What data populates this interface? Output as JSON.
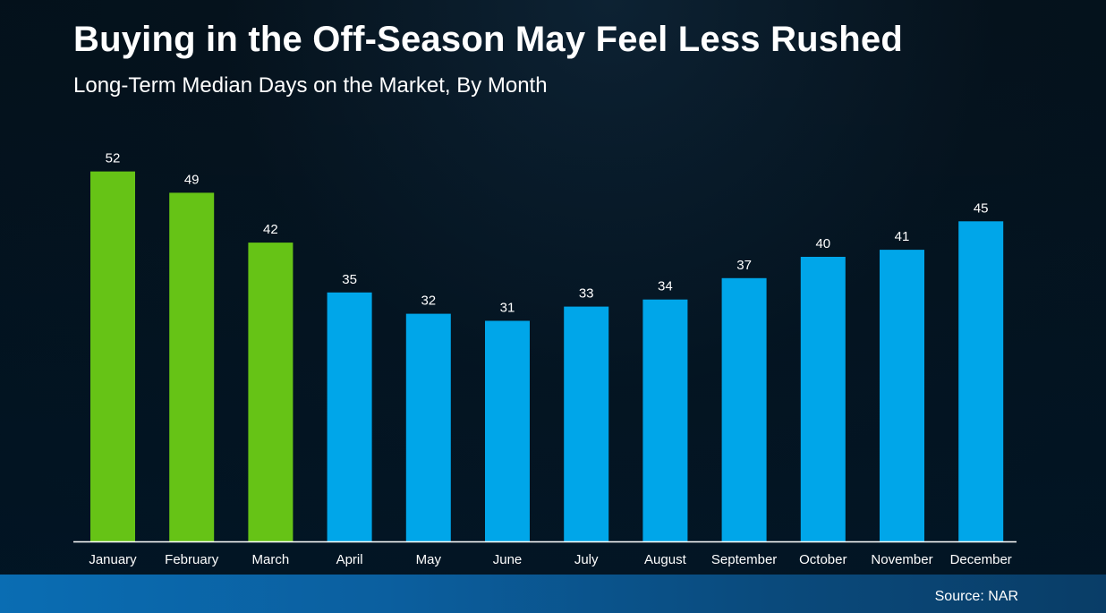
{
  "title": "Buying in the Off-Season May Feel Less Rushed",
  "subtitle": "Long-Term Median Days on the Market, By Month",
  "source": "Source: NAR",
  "colors": {
    "highlight": "#66c316",
    "primary": "#00a6e9",
    "axis": "#ffffff",
    "text": "#ffffff",
    "footer": "#0a6db3"
  },
  "chart_data": {
    "type": "bar",
    "title": "Buying in the Off-Season May Feel Less Rushed",
    "subtitle": "Long-Term Median Days on the Market, By Month",
    "categories": [
      "January",
      "February",
      "March",
      "April",
      "May",
      "June",
      "July",
      "August",
      "September",
      "October",
      "November",
      "December"
    ],
    "values": [
      52,
      49,
      42,
      35,
      32,
      31,
      33,
      34,
      37,
      40,
      41,
      45
    ],
    "highlighted_categories": [
      "January",
      "February",
      "March"
    ],
    "data_labels": true,
    "grid": false,
    "legend": "none",
    "xlabel": "",
    "ylabel": "",
    "ylim": [
      0,
      55
    ]
  }
}
